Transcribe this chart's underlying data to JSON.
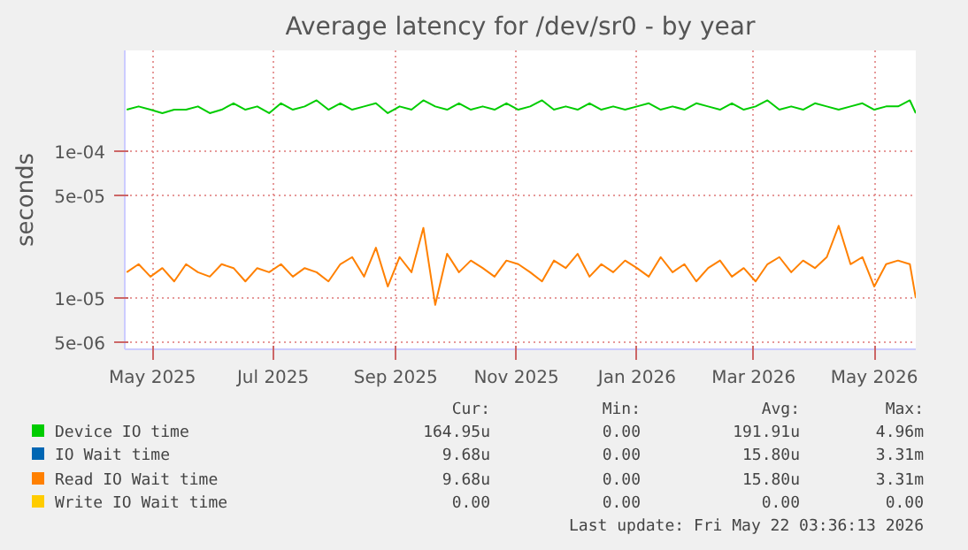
{
  "chart_data": {
    "type": "line",
    "title": "Average latency for /dev/sr0 - by year",
    "ylabel": "seconds",
    "log": "y",
    "grid": true,
    "legend": "bottom",
    "ylim": [
      4.5e-06,
      0.00048
    ],
    "yticks": [
      {
        "value": 5e-06,
        "label": "5e-06"
      },
      {
        "value": 1e-05,
        "label": "1e-05"
      },
      {
        "value": 5e-05,
        "label": "5e-05"
      },
      {
        "value": 0.0001,
        "label": "1e-04"
      }
    ],
    "xlim": [
      "2025-04-17",
      "2026-05-22"
    ],
    "xticks": [
      {
        "value": "2025-05-01",
        "label": "May 2025"
      },
      {
        "value": "2025-07-01",
        "label": "Jul 2025"
      },
      {
        "value": "2025-09-01",
        "label": "Sep 2025"
      },
      {
        "value": "2025-11-01",
        "label": "Nov 2025"
      },
      {
        "value": "2026-01-01",
        "label": "Jan 2026"
      },
      {
        "value": "2026-03-01",
        "label": "Mar 2026"
      },
      {
        "value": "2026-05-01",
        "label": "May 2026"
      }
    ],
    "x": [
      "2025-04-18",
      "2025-04-24",
      "2025-04-30",
      "2025-05-06",
      "2025-05-12",
      "2025-05-18",
      "2025-05-24",
      "2025-05-30",
      "2025-06-05",
      "2025-06-11",
      "2025-06-17",
      "2025-06-23",
      "2025-06-29",
      "2025-07-05",
      "2025-07-11",
      "2025-07-17",
      "2025-07-23",
      "2025-07-29",
      "2025-08-04",
      "2025-08-10",
      "2025-08-16",
      "2025-08-22",
      "2025-08-28",
      "2025-09-03",
      "2025-09-09",
      "2025-09-15",
      "2025-09-21",
      "2025-09-27",
      "2025-10-03",
      "2025-10-09",
      "2025-10-15",
      "2025-10-21",
      "2025-10-27",
      "2025-11-02",
      "2025-11-08",
      "2025-11-14",
      "2025-11-20",
      "2025-11-26",
      "2025-12-02",
      "2025-12-08",
      "2025-12-14",
      "2025-12-20",
      "2025-12-26",
      "2026-01-01",
      "2026-01-07",
      "2026-01-13",
      "2026-01-19",
      "2026-01-25",
      "2026-01-31",
      "2026-02-06",
      "2026-02-12",
      "2026-02-18",
      "2026-02-24",
      "2026-03-02",
      "2026-03-08",
      "2026-03-14",
      "2026-03-20",
      "2026-03-26",
      "2026-04-01",
      "2026-04-07",
      "2026-04-13",
      "2026-04-19",
      "2026-04-25",
      "2026-05-01",
      "2026-05-07",
      "2026-05-13",
      "2026-05-19",
      "2026-05-22"
    ],
    "series": [
      {
        "name": "Device IO time",
        "color": "#00cc00",
        "values": [
          0.00019,
          0.0002,
          0.00019,
          0.00018,
          0.00019,
          0.00019,
          0.0002,
          0.00018,
          0.00019,
          0.00021,
          0.00019,
          0.0002,
          0.00018,
          0.00021,
          0.00019,
          0.0002,
          0.00022,
          0.00019,
          0.00021,
          0.00019,
          0.0002,
          0.00021,
          0.00018,
          0.0002,
          0.00019,
          0.00022,
          0.0002,
          0.00019,
          0.00021,
          0.00019,
          0.0002,
          0.00019,
          0.00021,
          0.00019,
          0.0002,
          0.00022,
          0.00019,
          0.0002,
          0.00019,
          0.00021,
          0.00019,
          0.0002,
          0.00019,
          0.0002,
          0.00021,
          0.00019,
          0.0002,
          0.00019,
          0.00021,
          0.0002,
          0.00019,
          0.00021,
          0.00019,
          0.0002,
          0.00022,
          0.00019,
          0.0002,
          0.00019,
          0.00021,
          0.0002,
          0.00019,
          0.0002,
          0.00021,
          0.00019,
          0.0002,
          0.0002,
          0.00022,
          0.00018
        ]
      },
      {
        "name": "IO Wait time",
        "color": "#0066b3",
        "values": [
          null,
          null,
          null,
          null,
          null,
          null,
          null,
          null,
          null,
          null,
          null,
          null,
          null,
          null,
          null,
          null,
          null,
          null,
          null,
          null,
          null,
          null,
          null,
          null,
          null,
          null,
          null,
          null,
          null,
          null,
          null,
          null,
          null,
          null,
          null,
          null,
          null,
          null,
          null,
          null,
          null,
          null,
          null,
          null,
          null,
          null,
          null,
          null,
          null,
          null,
          null,
          null,
          null,
          null,
          null,
          null,
          null,
          null,
          null,
          null,
          null,
          null,
          null,
          null,
          null,
          null,
          null,
          null
        ]
      },
      {
        "name": "Read IO Wait time",
        "color": "#ff8000",
        "values": [
          1.5e-05,
          1.7e-05,
          1.4e-05,
          1.6e-05,
          1.3e-05,
          1.7e-05,
          1.5e-05,
          1.4e-05,
          1.7e-05,
          1.6e-05,
          1.3e-05,
          1.6e-05,
          1.5e-05,
          1.7e-05,
          1.4e-05,
          1.6e-05,
          1.5e-05,
          1.3e-05,
          1.7e-05,
          1.9e-05,
          1.4e-05,
          2.2e-05,
          1.2e-05,
          1.9e-05,
          1.5e-05,
          3e-05,
          9e-06,
          2e-05,
          1.5e-05,
          1.8e-05,
          1.6e-05,
          1.4e-05,
          1.8e-05,
          1.7e-05,
          1.5e-05,
          1.3e-05,
          1.8e-05,
          1.6e-05,
          2e-05,
          1.4e-05,
          1.7e-05,
          1.5e-05,
          1.8e-05,
          1.6e-05,
          1.4e-05,
          1.9e-05,
          1.5e-05,
          1.7e-05,
          1.3e-05,
          1.6e-05,
          1.8e-05,
          1.4e-05,
          1.6e-05,
          1.3e-05,
          1.7e-05,
          1.9e-05,
          1.5e-05,
          1.8e-05,
          1.6e-05,
          1.9e-05,
          3.1e-05,
          1.7e-05,
          1.9e-05,
          1.2e-05,
          1.7e-05,
          1.8e-05,
          1.7e-05,
          1e-05
        ]
      },
      {
        "name": "Write IO Wait time",
        "color": "#ffcc00",
        "values": [
          null,
          null,
          null,
          null,
          null,
          null,
          null,
          null,
          null,
          null,
          null,
          null,
          null,
          null,
          null,
          null,
          null,
          null,
          null,
          null,
          null,
          null,
          null,
          null,
          null,
          null,
          null,
          null,
          null,
          null,
          null,
          null,
          null,
          null,
          null,
          null,
          null,
          null,
          null,
          null,
          null,
          null,
          null,
          null,
          null,
          null,
          null,
          null,
          null,
          null,
          null,
          null,
          null,
          null,
          null,
          null,
          null,
          null,
          null,
          null,
          null,
          null,
          null,
          null,
          null,
          null,
          null,
          null
        ]
      }
    ],
    "annotations": [
      "Cur:",
      "Min:",
      "Avg:",
      "Max:",
      "164.95u",
      "0.00",
      "191.91u",
      "4.96m",
      "9.68u",
      "0.00",
      "15.80u",
      "3.31m",
      "9.68u",
      "0.00",
      "15.80u",
      "3.31m",
      "0.00",
      "0.00",
      "0.00",
      "0.00",
      "Last update: Fri May 22 03:36:13 2026"
    ]
  }
}
